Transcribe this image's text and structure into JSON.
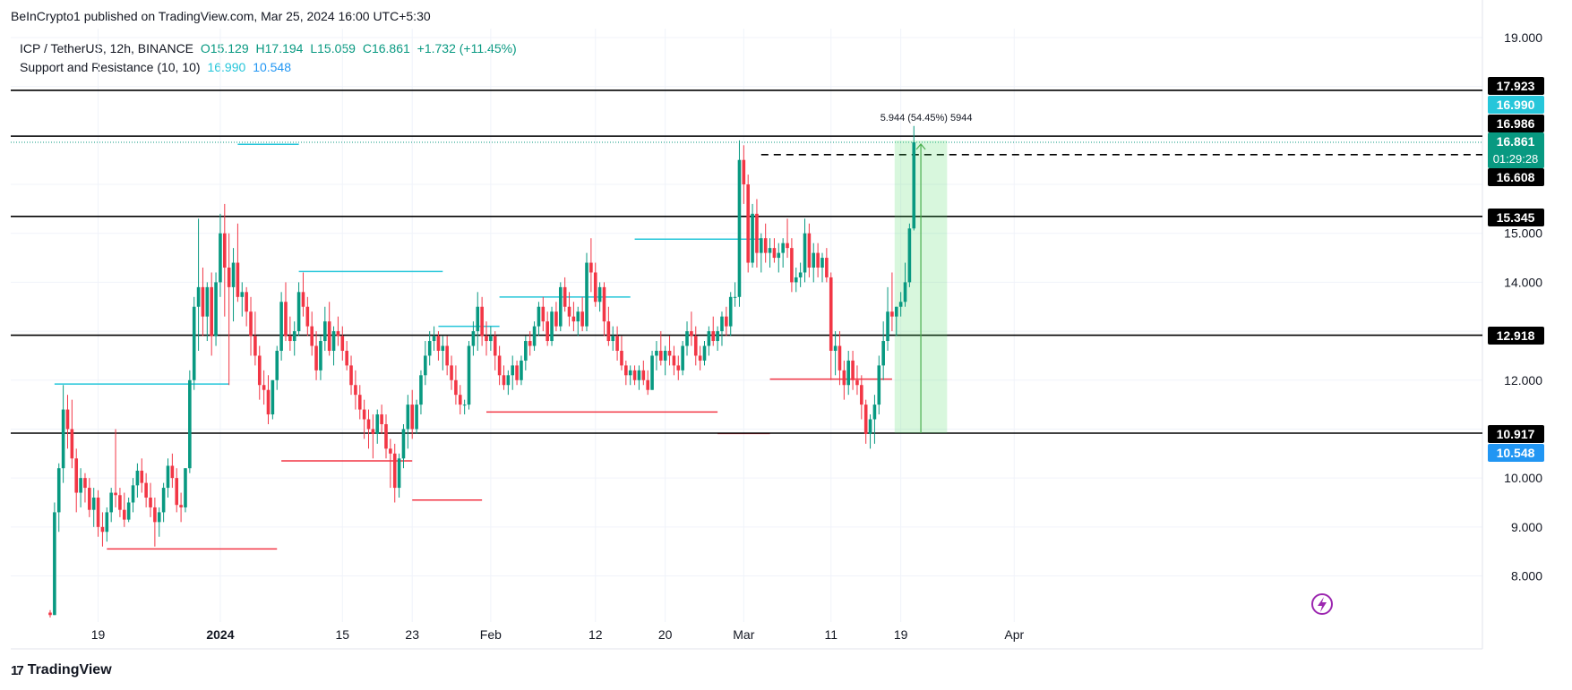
{
  "header": {
    "publisher": "BeInCrypto1 published on TradingView.com, Mar 25, 2024 16:00 UTC+5:30"
  },
  "legend": {
    "symbol": "ICP / TetherUS, 12h, BINANCE",
    "open_label": "O15.129",
    "high_label": "H17.194",
    "low_label": "L15.059",
    "close_label": "C16.861",
    "change_label": "+1.732 (+11.45%)",
    "indicator": "Support and Resistance (10, 10)",
    "indicator_upper": "16.990",
    "indicator_lower": "10.548"
  },
  "footer": {
    "brand": "TradingView"
  },
  "chart_data": {
    "type": "candlestick",
    "title": "ICP / TetherUS, 12h, BINANCE",
    "y_ticks": [
      "19.000",
      "15.000",
      "14.000",
      "12.000",
      "10.000",
      "9.000",
      "8.000"
    ],
    "y_range": [
      7.0,
      19.5
    ],
    "x_ticks": [
      {
        "label": "19",
        "bold": false,
        "idx": 11
      },
      {
        "label": "2024",
        "bold": true,
        "idx": 39
      },
      {
        "label": "15",
        "bold": false,
        "idx": 67
      },
      {
        "label": "23",
        "bold": false,
        "idx": 83
      },
      {
        "label": "Feb",
        "bold": false,
        "idx": 101
      },
      {
        "label": "12",
        "bold": false,
        "idx": 125
      },
      {
        "label": "20",
        "bold": false,
        "idx": 141
      },
      {
        "label": "Mar",
        "bold": false,
        "idx": 159
      },
      {
        "label": "11",
        "bold": false,
        "idx": 179
      },
      {
        "label": "19",
        "bold": false,
        "idx": 195
      },
      {
        "label": "Apr",
        "bold": false,
        "idx": 221
      }
    ],
    "horizontal_levels": [
      17.923,
      16.986,
      15.345,
      12.918,
      10.917
    ],
    "price_badges": [
      {
        "label": "17.923",
        "value": 17.923,
        "color": "#000000"
      },
      {
        "label": "16.990",
        "value": 16.99,
        "color": "#26c6da"
      },
      {
        "label": "16.986",
        "value": 16.986,
        "color": "#000000"
      },
      {
        "label": "16.861",
        "value": 16.861,
        "color": "#089981",
        "sub": "01:29:28"
      },
      {
        "label": "16.608",
        "value": 16.608,
        "color": "#000000"
      },
      {
        "label": "15.345",
        "value": 15.345,
        "color": "#000000"
      },
      {
        "label": "12.918",
        "value": 12.918,
        "color": "#000000"
      },
      {
        "label": "10.917",
        "value": 10.917,
        "color": "#000000"
      },
      {
        "label": "10.548",
        "value": 10.548,
        "color": "#2196f3"
      }
    ],
    "dashed_level": 16.608,
    "last_price": 16.861,
    "measure": {
      "label": "5.944 (54.45%) 5944",
      "from_idx": 194,
      "to_idx": 205,
      "low": 10.917,
      "high": 16.861
    },
    "resistance_segments": [
      {
        "y": 11.92,
        "from": 1,
        "to": 41
      },
      {
        "y": 16.82,
        "from": 43,
        "to": 57
      },
      {
        "y": 14.22,
        "from": 57,
        "to": 90
      },
      {
        "y": 13.1,
        "from": 89,
        "to": 103
      },
      {
        "y": 13.7,
        "from": 103,
        "to": 133
      },
      {
        "y": 14.88,
        "from": 134,
        "to": 163
      }
    ],
    "support_segments": [
      {
        "y": 8.55,
        "from": 13,
        "to": 52
      },
      {
        "y": 10.35,
        "from": 53,
        "to": 83
      },
      {
        "y": 9.55,
        "from": 83,
        "to": 99
      },
      {
        "y": 11.35,
        "from": 100,
        "to": 153
      },
      {
        "y": 10.91,
        "from": 153,
        "to": 165
      },
      {
        "y": 12.02,
        "from": 165,
        "to": 193
      }
    ],
    "ohlc": [
      [
        7.25,
        7.3,
        7.15,
        7.2
      ],
      [
        7.2,
        9.5,
        7.2,
        9.3
      ],
      [
        9.3,
        10.3,
        8.9,
        10.2
      ],
      [
        10.2,
        11.9,
        9.9,
        11.4
      ],
      [
        11.4,
        11.7,
        10.6,
        11.0
      ],
      [
        11.0,
        11.6,
        10.2,
        10.4
      ],
      [
        10.4,
        10.6,
        9.3,
        9.7
      ],
      [
        9.7,
        10.2,
        9.4,
        10.0
      ],
      [
        10.0,
        10.1,
        9.5,
        9.8
      ],
      [
        9.8,
        10.0,
        9.2,
        9.35
      ],
      [
        9.35,
        9.8,
        9.0,
        9.6
      ],
      [
        9.6,
        9.75,
        8.8,
        9.0
      ],
      [
        9.0,
        9.3,
        8.6,
        8.9
      ],
      [
        8.9,
        9.4,
        8.7,
        9.3
      ],
      [
        9.3,
        9.8,
        9.1,
        9.7
      ],
      [
        9.7,
        11.0,
        9.4,
        9.65
      ],
      [
        9.65,
        9.8,
        9.2,
        9.35
      ],
      [
        9.35,
        9.7,
        9.0,
        9.15
      ],
      [
        9.15,
        9.6,
        9.1,
        9.5
      ],
      [
        9.5,
        10.0,
        9.3,
        9.85
      ],
      [
        9.85,
        10.3,
        9.6,
        10.15
      ],
      [
        10.15,
        10.4,
        9.7,
        9.9
      ],
      [
        9.9,
        10.1,
        9.4,
        9.6
      ],
      [
        9.6,
        9.9,
        9.2,
        9.4
      ],
      [
        9.4,
        9.6,
        8.6,
        9.1
      ],
      [
        9.1,
        9.4,
        8.8,
        9.3
      ],
      [
        9.3,
        9.9,
        9.1,
        9.8
      ],
      [
        9.8,
        10.4,
        9.6,
        10.25
      ],
      [
        10.25,
        10.5,
        9.8,
        10.0
      ],
      [
        10.0,
        10.2,
        9.3,
        9.45
      ],
      [
        9.45,
        9.7,
        9.1,
        9.4
      ],
      [
        9.4,
        10.2,
        9.3,
        10.2
      ],
      [
        10.2,
        12.2,
        10.1,
        12.0
      ],
      [
        12.0,
        13.7,
        11.8,
        13.5
      ],
      [
        13.5,
        15.3,
        12.6,
        13.9
      ],
      [
        13.9,
        14.3,
        12.9,
        13.3
      ],
      [
        13.3,
        14.0,
        12.8,
        13.9
      ],
      [
        13.9,
        14.2,
        12.5,
        12.9
      ],
      [
        12.9,
        14.2,
        12.7,
        14.0
      ],
      [
        14.0,
        15.4,
        13.7,
        15.0
      ],
      [
        15.0,
        15.6,
        13.3,
        14.3
      ],
      [
        14.3,
        15.0,
        11.9,
        13.9
      ],
      [
        13.9,
        14.7,
        13.2,
        14.4
      ],
      [
        14.4,
        15.2,
        13.6,
        13.7
      ],
      [
        13.7,
        14.0,
        13.3,
        13.8
      ],
      [
        13.8,
        13.9,
        13.1,
        13.4
      ],
      [
        13.4,
        13.7,
        12.5,
        12.9
      ],
      [
        12.9,
        13.4,
        12.3,
        12.5
      ],
      [
        12.5,
        12.7,
        11.6,
        11.9
      ],
      [
        11.9,
        12.2,
        11.5,
        11.8
      ],
      [
        11.8,
        12.1,
        11.1,
        11.3
      ],
      [
        11.3,
        12.0,
        11.2,
        12.0
      ],
      [
        12.0,
        12.7,
        11.8,
        12.6
      ],
      [
        12.6,
        13.8,
        12.4,
        13.6
      ],
      [
        13.6,
        14.0,
        12.8,
        12.9
      ],
      [
        12.9,
        13.3,
        12.6,
        12.8
      ],
      [
        12.8,
        13.2,
        12.5,
        13.0
      ],
      [
        13.0,
        14.0,
        12.9,
        13.8
      ],
      [
        13.8,
        14.2,
        13.3,
        13.5
      ],
      [
        13.5,
        13.7,
        12.9,
        13.1
      ],
      [
        13.1,
        13.4,
        12.5,
        12.7
      ],
      [
        12.7,
        13.0,
        12.0,
        12.2
      ],
      [
        12.2,
        12.9,
        12.0,
        12.8
      ],
      [
        12.8,
        13.5,
        12.6,
        13.2
      ],
      [
        13.2,
        13.6,
        12.5,
        12.6
      ],
      [
        12.6,
        13.1,
        12.3,
        13.0
      ],
      [
        13.0,
        13.3,
        12.7,
        12.9
      ],
      [
        12.9,
        13.1,
        12.4,
        12.6
      ],
      [
        12.6,
        12.8,
        12.2,
        12.3
      ],
      [
        12.3,
        12.5,
        11.7,
        11.9
      ],
      [
        11.9,
        12.2,
        11.4,
        11.7
      ],
      [
        11.7,
        11.9,
        11.2,
        11.4
      ],
      [
        11.4,
        11.6,
        10.8,
        11.2
      ],
      [
        11.2,
        11.4,
        10.6,
        11.0
      ],
      [
        11.0,
        11.3,
        10.4,
        10.9
      ],
      [
        10.9,
        11.4,
        10.7,
        11.3
      ],
      [
        11.3,
        11.5,
        10.9,
        11.1
      ],
      [
        11.1,
        11.3,
        10.4,
        10.6
      ],
      [
        10.6,
        10.8,
        9.8,
        10.5
      ],
      [
        10.5,
        10.7,
        9.5,
        9.8
      ],
      [
        9.8,
        10.5,
        9.6,
        10.4
      ],
      [
        10.4,
        11.1,
        10.2,
        11.0
      ],
      [
        11.0,
        11.7,
        10.6,
        11.5
      ],
      [
        11.5,
        11.8,
        10.8,
        11.0
      ],
      [
        11.0,
        11.6,
        10.9,
        11.5
      ],
      [
        11.5,
        12.2,
        11.3,
        12.1
      ],
      [
        12.1,
        12.8,
        11.9,
        12.5
      ],
      [
        12.5,
        13.0,
        12.3,
        12.8
      ],
      [
        12.8,
        13.1,
        12.6,
        12.9
      ],
      [
        12.9,
        13.0,
        12.4,
        12.6
      ],
      [
        12.6,
        12.9,
        12.2,
        12.7
      ],
      [
        12.7,
        12.9,
        12.1,
        12.3
      ],
      [
        12.3,
        12.5,
        11.8,
        12.0
      ],
      [
        12.0,
        12.3,
        11.5,
        11.7
      ],
      [
        11.7,
        11.9,
        11.3,
        11.5
      ],
      [
        11.5,
        11.6,
        11.3,
        11.5
      ],
      [
        11.5,
        12.8,
        11.4,
        12.7
      ],
      [
        12.7,
        13.2,
        12.5,
        13.0
      ],
      [
        13.0,
        13.8,
        12.6,
        13.5
      ],
      [
        13.5,
        13.7,
        12.7,
        12.9
      ],
      [
        12.9,
        13.2,
        12.5,
        12.8
      ],
      [
        12.8,
        13.1,
        12.6,
        12.9
      ],
      [
        12.9,
        13.0,
        12.2,
        12.5
      ],
      [
        12.5,
        12.7,
        11.9,
        12.1
      ],
      [
        12.1,
        12.3,
        11.8,
        11.9
      ],
      [
        11.9,
        12.2,
        11.7,
        12.1
      ],
      [
        12.1,
        12.5,
        11.8,
        12.3
      ],
      [
        12.3,
        12.4,
        11.9,
        12.0
      ],
      [
        12.0,
        12.5,
        11.9,
        12.4
      ],
      [
        12.4,
        12.9,
        12.2,
        12.8
      ],
      [
        12.8,
        13.0,
        12.5,
        12.7
      ],
      [
        12.7,
        13.2,
        12.6,
        13.1
      ],
      [
        13.1,
        13.6,
        12.9,
        13.5
      ],
      [
        13.5,
        13.7,
        13.0,
        13.2
      ],
      [
        13.2,
        13.4,
        12.7,
        12.8
      ],
      [
        12.8,
        13.5,
        12.7,
        13.4
      ],
      [
        13.4,
        13.6,
        13.0,
        13.1
      ],
      [
        13.1,
        14.0,
        13.0,
        13.9
      ],
      [
        13.9,
        14.1,
        13.4,
        13.5
      ],
      [
        13.5,
        13.8,
        13.1,
        13.3
      ],
      [
        13.3,
        13.6,
        13.0,
        13.2
      ],
      [
        13.2,
        13.5,
        12.9,
        13.4
      ],
      [
        13.4,
        13.7,
        13.0,
        13.1
      ],
      [
        13.1,
        14.6,
        13.0,
        14.4
      ],
      [
        14.4,
        14.9,
        13.8,
        14.2
      ],
      [
        14.2,
        14.4,
        13.5,
        13.6
      ],
      [
        13.6,
        14.0,
        13.4,
        13.9
      ],
      [
        13.9,
        14.0,
        12.9,
        13.2
      ],
      [
        13.2,
        13.5,
        12.7,
        12.8
      ],
      [
        12.8,
        13.1,
        12.6,
        12.9
      ],
      [
        12.9,
        13.1,
        12.4,
        12.6
      ],
      [
        12.6,
        12.9,
        12.2,
        12.3
      ],
      [
        12.3,
        12.4,
        11.9,
        12.1
      ],
      [
        12.1,
        12.3,
        11.9,
        12.2
      ],
      [
        12.2,
        12.3,
        11.9,
        12.0
      ],
      [
        12.0,
        12.3,
        11.8,
        12.2
      ],
      [
        12.2,
        12.4,
        11.9,
        12.0
      ],
      [
        12.0,
        12.2,
        11.7,
        11.8
      ],
      [
        11.8,
        12.6,
        11.8,
        12.5
      ],
      [
        12.5,
        12.8,
        12.2,
        12.6
      ],
      [
        12.6,
        13.0,
        12.3,
        12.4
      ],
      [
        12.4,
        12.7,
        12.1,
        12.6
      ],
      [
        12.6,
        12.9,
        12.3,
        12.5
      ],
      [
        12.5,
        12.7,
        12.1,
        12.3
      ],
      [
        12.3,
        12.5,
        12.0,
        12.2
      ],
      [
        12.2,
        12.8,
        12.1,
        12.7
      ],
      [
        12.7,
        13.2,
        12.5,
        13.0
      ],
      [
        13.0,
        13.4,
        12.7,
        12.9
      ],
      [
        12.9,
        13.1,
        12.3,
        12.5
      ],
      [
        12.5,
        12.7,
        12.2,
        12.4
      ],
      [
        12.4,
        12.8,
        12.3,
        12.7
      ],
      [
        12.7,
        13.1,
        12.5,
        13.0
      ],
      [
        13.0,
        13.3,
        12.7,
        12.8
      ],
      [
        12.8,
        13.1,
        12.6,
        13.0
      ],
      [
        13.0,
        13.4,
        12.7,
        13.3
      ],
      [
        13.3,
        13.5,
        12.9,
        13.1
      ],
      [
        13.1,
        13.8,
        12.9,
        13.7
      ],
      [
        13.7,
        14.0,
        13.5,
        13.7
      ],
      [
        13.7,
        16.9,
        13.5,
        16.5
      ],
      [
        16.5,
        16.8,
        15.6,
        16.0
      ],
      [
        16.0,
        16.2,
        14.2,
        14.4
      ],
      [
        14.4,
        15.6,
        14.3,
        15.4
      ],
      [
        15.4,
        15.7,
        14.3,
        14.6
      ],
      [
        14.6,
        15.0,
        14.2,
        14.9
      ],
      [
        14.9,
        15.2,
        14.4,
        14.6
      ],
      [
        14.6,
        14.9,
        14.3,
        14.7
      ],
      [
        14.7,
        14.9,
        14.4,
        14.5
      ],
      [
        14.5,
        14.8,
        14.2,
        14.6
      ],
      [
        14.6,
        14.9,
        14.3,
        14.8
      ],
      [
        14.8,
        15.3,
        14.5,
        14.7
      ],
      [
        14.7,
        14.9,
        13.8,
        14.0
      ],
      [
        14.0,
        14.3,
        13.8,
        14.1
      ],
      [
        14.1,
        14.4,
        13.9,
        14.2
      ],
      [
        14.2,
        15.3,
        14.0,
        15.0
      ],
      [
        15.0,
        15.2,
        14.1,
        14.3
      ],
      [
        14.3,
        14.8,
        14.0,
        14.6
      ],
      [
        14.6,
        14.8,
        14.1,
        14.3
      ],
      [
        14.3,
        14.6,
        14.0,
        14.5
      ],
      [
        14.5,
        14.7,
        14.0,
        14.1
      ],
      [
        14.1,
        14.2,
        12.0,
        12.6
      ],
      [
        12.6,
        13.0,
        12.1,
        12.7
      ],
      [
        12.7,
        13.0,
        11.9,
        12.2
      ],
      [
        12.2,
        12.4,
        11.6,
        11.9
      ],
      [
        11.9,
        12.6,
        11.7,
        12.4
      ],
      [
        12.4,
        12.6,
        11.8,
        12.0
      ],
      [
        12.0,
        12.3,
        11.7,
        11.9
      ],
      [
        11.9,
        12.1,
        11.2,
        11.5
      ],
      [
        11.5,
        11.6,
        10.7,
        10.9
      ],
      [
        10.9,
        11.3,
        10.6,
        11.2
      ],
      [
        11.2,
        11.7,
        10.7,
        11.5
      ],
      [
        11.5,
        12.5,
        11.3,
        12.3
      ],
      [
        12.3,
        13.2,
        12.0,
        12.8
      ],
      [
        12.8,
        13.9,
        12.6,
        13.4
      ],
      [
        13.4,
        14.2,
        13.0,
        13.3
      ],
      [
        13.3,
        13.5,
        12.9,
        13.5
      ],
      [
        13.5,
        13.8,
        13.3,
        13.6
      ],
      [
        13.6,
        14.4,
        13.5,
        14.0
      ],
      [
        14.0,
        15.2,
        13.9,
        15.1
      ],
      [
        15.1,
        17.194,
        15.059,
        16.861
      ]
    ]
  }
}
